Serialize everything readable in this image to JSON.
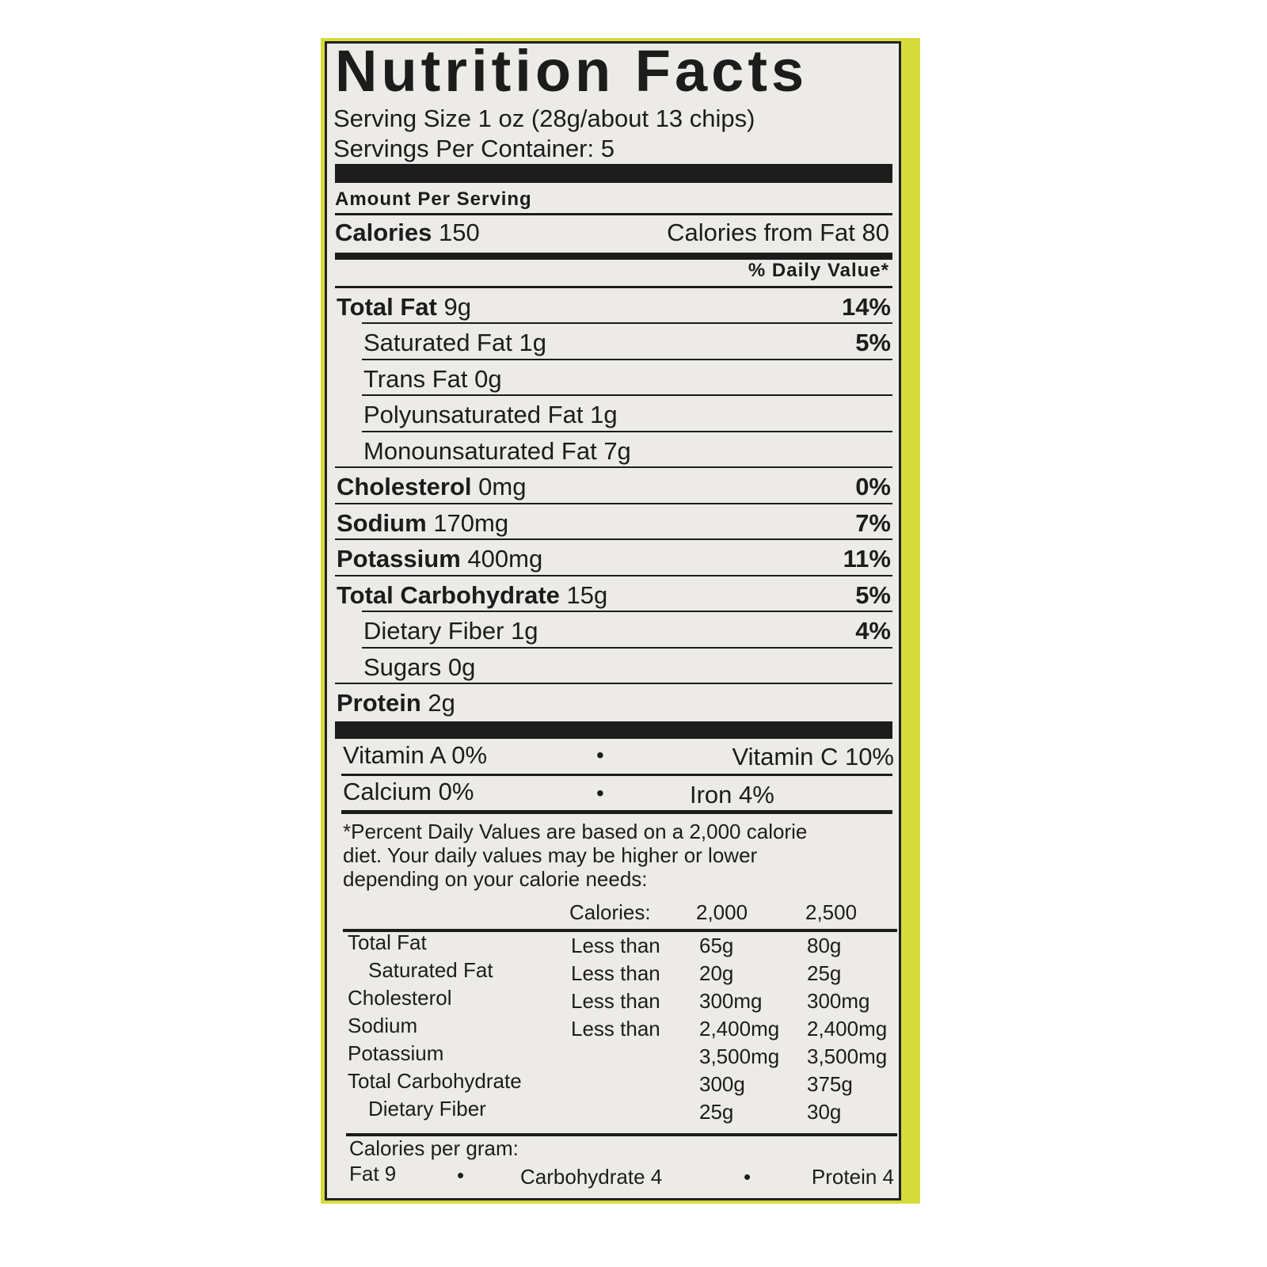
{
  "title": "Nutrition Facts",
  "serving_size": "Serving Size 1 oz (28g/about 13 chips)",
  "servings_per_container": "Servings Per Container: 5",
  "amount_per_serving": "Amount Per Serving",
  "calories": {
    "label": "Calories",
    "value": "150",
    "from_fat": "Calories from Fat 80"
  },
  "daily_value_header": "% Daily Value*",
  "nutrients": [
    {
      "name": "Total Fat",
      "amount": "9g",
      "dv": "14%",
      "bold": true,
      "indent": false
    },
    {
      "name": "Saturated Fat",
      "amount": "1g",
      "dv": "5%",
      "bold": false,
      "indent": true
    },
    {
      "name": "Trans Fat",
      "amount": "0g",
      "dv": "",
      "bold": false,
      "indent": true
    },
    {
      "name": "Polyunsaturated Fat",
      "amount": "1g",
      "dv": "",
      "bold": false,
      "indent": true
    },
    {
      "name": "Monounsaturated Fat",
      "amount": "7g",
      "dv": "",
      "bold": false,
      "indent": true
    },
    {
      "name": "Cholesterol",
      "amount": "0mg",
      "dv": "0%",
      "bold": true,
      "indent": false
    },
    {
      "name": "Sodium",
      "amount": "170mg",
      "dv": "7%",
      "bold": true,
      "indent": false
    },
    {
      "name": "Potassium",
      "amount": "400mg",
      "dv": "11%",
      "bold": true,
      "indent": false
    },
    {
      "name": "Total Carbohydrate",
      "amount": "15g",
      "dv": "5%",
      "bold": true,
      "indent": false
    },
    {
      "name": "Dietary Fiber",
      "amount": "1g",
      "dv": "4%",
      "bold": false,
      "indent": true
    },
    {
      "name": "Sugars",
      "amount": "0g",
      "dv": "",
      "bold": false,
      "indent": true
    },
    {
      "name": "Protein",
      "amount": "2g",
      "dv": "",
      "bold": true,
      "indent": false
    }
  ],
  "vitamins": {
    "vitamin_a": "Vitamin A 0%",
    "vitamin_c": "Vitamin C 10%",
    "calcium": "Calcium 0%",
    "iron": "Iron 4%",
    "bullet": "•"
  },
  "footnote": [
    "*Percent Daily Values are based on a 2,000 calorie",
    "diet. Your daily values may be higher or lower",
    "depending on your calorie needs:"
  ],
  "daily_table": {
    "header": [
      "Calories:",
      "2,000",
      "2,500"
    ],
    "rows": [
      {
        "name": "Total Fat",
        "limit": "Less than",
        "v2000": "65g",
        "v2500": "80g",
        "indent": false
      },
      {
        "name": "Saturated Fat",
        "limit": "Less than",
        "v2000": "20g",
        "v2500": "25g",
        "indent": true
      },
      {
        "name": "Cholesterol",
        "limit": "Less than",
        "v2000": "300mg",
        "v2500": "300mg",
        "indent": false
      },
      {
        "name": "Sodium",
        "limit": "Less than",
        "v2000": "2,400mg",
        "v2500": "2,400mg",
        "indent": false
      },
      {
        "name": "Potassium",
        "limit": "",
        "v2000": "3,500mg",
        "v2500": "3,500mg",
        "indent": false
      },
      {
        "name": "Total Carbohydrate",
        "limit": "",
        "v2000": "300g",
        "v2500": "375g",
        "indent": false
      },
      {
        "name": "Dietary Fiber",
        "limit": "",
        "v2000": "25g",
        "v2500": "30g",
        "indent": true
      }
    ]
  },
  "calories_per_gram": {
    "label": "Calories per gram:",
    "fat": "Fat 9",
    "carb": "Carbohydrate 4",
    "protein": "Protein 4",
    "bullet": "•"
  },
  "colors": {
    "package": "#d6dc3c",
    "label_bg": "#ecebe8",
    "ink": "#1c1c1c"
  }
}
